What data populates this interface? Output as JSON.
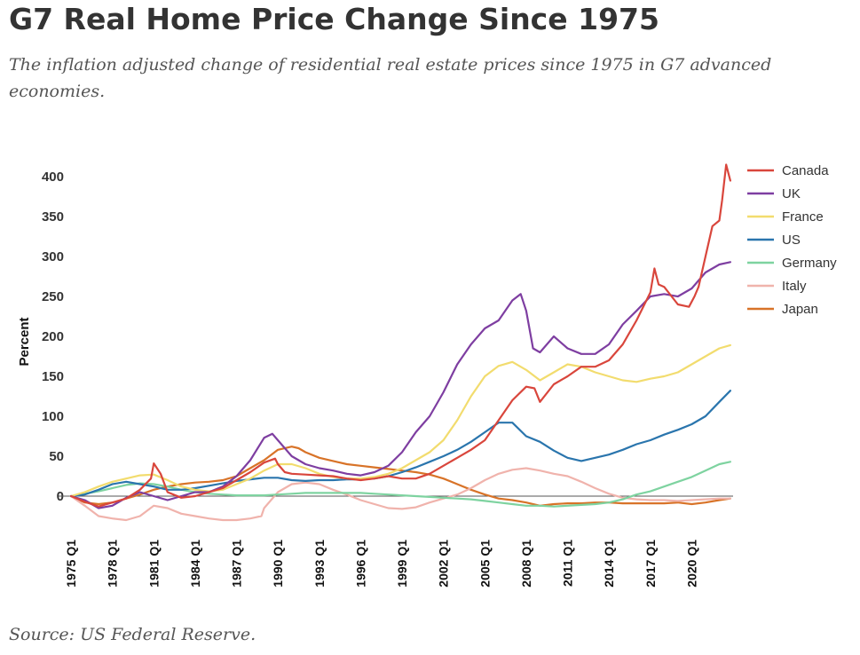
{
  "header": {
    "title": "G7 Real Home Price Change Since 1975",
    "subtitle": "The inflation adjusted change of residential real estate prices since 1975 in G7 advanced economies."
  },
  "footer": {
    "source": "Source: US Federal Reserve."
  },
  "chart_data": {
    "type": "line",
    "ylabel": "Percent",
    "ylim": [
      -40,
      420
    ],
    "yticks": [
      0,
      50,
      100,
      150,
      200,
      250,
      300,
      350,
      400
    ],
    "xlim": [
      1975,
      2023
    ],
    "xtick_labels": [
      "1975 Q1",
      "1978 Q1",
      "1981 Q1",
      "1984 Q1",
      "1987 Q1",
      "1990 Q1",
      "1993 Q1",
      "1996 Q1",
      "1999 Q1",
      "2002 Q1",
      "2005 Q1",
      "2008 Q1",
      "2011 Q1",
      "2014 Q1",
      "2017 Q1",
      "2020 Q1"
    ],
    "xtick_values": [
      1975,
      1978,
      1981,
      1984,
      1987,
      1990,
      1993,
      1996,
      1999,
      2002,
      2005,
      2008,
      2011,
      2014,
      2017,
      2020
    ],
    "legend_position": "right",
    "grid": false,
    "zero_line": true,
    "series": [
      {
        "name": "Canada",
        "color": "#d9463c",
        "x": [
          1975,
          1976,
          1977,
          1978,
          1979,
          1980,
          1980.8,
          1981,
          1981.5,
          1982,
          1983,
          1984,
          1985,
          1986,
          1987,
          1988,
          1989,
          1989.8,
          1990,
          1990.5,
          1991,
          1992,
          1993,
          1994,
          1995,
          1996,
          1997,
          1998,
          1999,
          2000,
          2001,
          2002,
          2003,
          2004,
          2005,
          2006,
          2007,
          2008,
          2008.6,
          2009,
          2010,
          2011,
          2012,
          2013,
          2014,
          2015,
          2016,
          2017,
          2017.3,
          2017.6,
          2018,
          2019,
          2019.8,
          2020.2,
          2020.5,
          2021,
          2021.5,
          2022,
          2022.2,
          2022.5,
          2022.8
        ],
        "y": [
          0,
          -7,
          -13,
          -8,
          -3,
          8,
          22,
          41,
          28,
          5,
          -2,
          0,
          5,
          10,
          20,
          30,
          42,
          47,
          40,
          30,
          28,
          27,
          26,
          25,
          22,
          20,
          22,
          25,
          22,
          22,
          28,
          38,
          48,
          58,
          70,
          95,
          120,
          137,
          135,
          118,
          140,
          150,
          162,
          162,
          170,
          190,
          220,
          255,
          285,
          265,
          262,
          240,
          237,
          250,
          262,
          300,
          338,
          345,
          370,
          415,
          395
        ]
      },
      {
        "name": "UK",
        "color": "#7e3ea1",
        "x": [
          1975,
          1976,
          1977,
          1978,
          1979,
          1980,
          1981,
          1982,
          1983,
          1984,
          1985,
          1986,
          1987,
          1988,
          1989,
          1989.6,
          1990,
          1991,
          1992,
          1993,
          1994,
          1995,
          1996,
          1997,
          1998,
          1999,
          2000,
          2001,
          2002,
          2003,
          2004,
          2005,
          2006,
          2007,
          2007.6,
          2008,
          2008.5,
          2009,
          2010,
          2011,
          2012,
          2013,
          2014,
          2015,
          2016,
          2017,
          2018,
          2019,
          2020,
          2021,
          2022,
          2022.8
        ],
        "y": [
          0,
          -5,
          -15,
          -12,
          -2,
          5,
          0,
          -5,
          0,
          5,
          5,
          12,
          25,
          45,
          73,
          78,
          70,
          50,
          40,
          35,
          32,
          28,
          26,
          30,
          38,
          55,
          80,
          100,
          130,
          165,
          190,
          210,
          220,
          245,
          253,
          232,
          185,
          180,
          200,
          185,
          178,
          178,
          190,
          215,
          232,
          250,
          253,
          250,
          260,
          280,
          290,
          293
        ]
      },
      {
        "name": "France",
        "color": "#f2dc6e",
        "x": [
          1975,
          1976,
          1977,
          1978,
          1979,
          1980,
          1981,
          1982,
          1983,
          1984,
          1985,
          1986,
          1987,
          1988,
          1989,
          1990,
          1991,
          1992,
          1993,
          1994,
          1995,
          1996,
          1997,
          1998,
          1999,
          2000,
          2001,
          2002,
          2003,
          2004,
          2005,
          2006,
          2007,
          2008,
          2009,
          2010,
          2011,
          2012,
          2013,
          2014,
          2015,
          2016,
          2017,
          2018,
          2019,
          2020,
          2021,
          2022,
          2022.8
        ],
        "y": [
          0,
          5,
          12,
          18,
          22,
          26,
          27,
          20,
          12,
          8,
          6,
          8,
          15,
          22,
          32,
          40,
          40,
          35,
          28,
          24,
          22,
          22,
          24,
          28,
          35,
          45,
          55,
          70,
          95,
          125,
          150,
          163,
          168,
          158,
          145,
          155,
          165,
          162,
          155,
          150,
          145,
          143,
          147,
          150,
          155,
          165,
          175,
          185,
          189
        ]
      },
      {
        "name": "US",
        "color": "#2a75ad",
        "x": [
          1975,
          1976,
          1977,
          1978,
          1979,
          1980,
          1981,
          1982,
          1983,
          1984,
          1985,
          1986,
          1987,
          1988,
          1989,
          1990,
          1991,
          1992,
          1993,
          1994,
          1995,
          1996,
          1997,
          1998,
          1999,
          2000,
          2001,
          2002,
          2003,
          2004,
          2005,
          2006,
          2007,
          2008,
          2009,
          2010,
          2011,
          2012,
          2013,
          2014,
          2015,
          2016,
          2017,
          2018,
          2019,
          2020,
          2021,
          2022,
          2022.8
        ],
        "y": [
          0,
          2,
          8,
          15,
          18,
          15,
          12,
          8,
          8,
          10,
          13,
          16,
          19,
          21,
          23,
          23,
          20,
          19,
          20,
          20,
          21,
          21,
          22,
          25,
          30,
          36,
          43,
          50,
          58,
          68,
          80,
          92,
          92,
          75,
          68,
          57,
          48,
          44,
          48,
          52,
          58,
          65,
          70,
          77,
          83,
          90,
          100,
          118,
          132
        ]
      },
      {
        "name": "Germany",
        "color": "#7ed3a0",
        "x": [
          1975,
          1976,
          1977,
          1978,
          1979,
          1980,
          1981,
          1982,
          1983,
          1984,
          1985,
          1986,
          1987,
          1988,
          1989,
          1990,
          1991,
          1992,
          1993,
          1994,
          1995,
          1996,
          1997,
          1998,
          1999,
          2000,
          2001,
          2002,
          2003,
          2004,
          2005,
          2006,
          2007,
          2008,
          2009,
          2010,
          2011,
          2012,
          2013,
          2014,
          2015,
          2016,
          2017,
          2018,
          2019,
          2020,
          2021,
          2022,
          2022.8
        ],
        "y": [
          0,
          3,
          6,
          10,
          14,
          16,
          15,
          12,
          8,
          5,
          3,
          2,
          1,
          1,
          1,
          2,
          3,
          4,
          4,
          4,
          4,
          4,
          3,
          2,
          1,
          0,
          -1,
          -2,
          -3,
          -4,
          -6,
          -8,
          -10,
          -12,
          -12,
          -13,
          -12,
          -11,
          -10,
          -8,
          -4,
          2,
          6,
          12,
          18,
          24,
          32,
          40,
          43
        ]
      },
      {
        "name": "Italy",
        "color": "#f0b3ac",
        "x": [
          1975,
          1976,
          1977,
          1978,
          1979,
          1980,
          1981,
          1982,
          1983,
          1984,
          1985,
          1986,
          1987,
          1988,
          1988.8,
          1989,
          1990,
          1991,
          1992,
          1993,
          1994,
          1995,
          1996,
          1997,
          1998,
          1999,
          2000,
          2001,
          2002,
          2003,
          2004,
          2005,
          2006,
          2007,
          2008,
          2009,
          2010,
          2011,
          2012,
          2013,
          2014,
          2015,
          2016,
          2017,
          2018,
          2019,
          2020,
          2021,
          2022,
          2022.8
        ],
        "y": [
          0,
          -12,
          -25,
          -28,
          -30,
          -25,
          -12,
          -15,
          -22,
          -25,
          -28,
          -30,
          -30,
          -28,
          -25,
          -15,
          5,
          15,
          17,
          15,
          8,
          2,
          -5,
          -10,
          -15,
          -16,
          -14,
          -8,
          -3,
          2,
          10,
          20,
          28,
          33,
          35,
          32,
          28,
          25,
          18,
          10,
          3,
          -2,
          -4,
          -5,
          -5,
          -6,
          -5,
          -4,
          -3,
          -3
        ]
      },
      {
        "name": "Japan",
        "color": "#d87328",
        "x": [
          1975,
          1976,
          1977,
          1978,
          1979,
          1980,
          1981,
          1982,
          1983,
          1984,
          1985,
          1986,
          1987,
          1988,
          1989,
          1990,
          1991,
          1991.5,
          1992,
          1993,
          1994,
          1995,
          1996,
          1997,
          1998,
          1999,
          2000,
          2001,
          2002,
          2003,
          2004,
          2005,
          2006,
          2007,
          2008,
          2009,
          2010,
          2011,
          2012,
          2013,
          2014,
          2015,
          2016,
          2017,
          2018,
          2019,
          2020,
          2021,
          2022,
          2022.8
        ],
        "y": [
          0,
          -8,
          -10,
          -8,
          -3,
          2,
          8,
          12,
          15,
          17,
          18,
          20,
          25,
          35,
          45,
          58,
          62,
          60,
          55,
          48,
          44,
          40,
          38,
          36,
          34,
          32,
          30,
          27,
          22,
          15,
          8,
          2,
          -3,
          -5,
          -8,
          -12,
          -10,
          -9,
          -9,
          -8,
          -8,
          -9,
          -9,
          -9,
          -9,
          -8,
          -10,
          -8,
          -5,
          -3
        ]
      }
    ]
  }
}
